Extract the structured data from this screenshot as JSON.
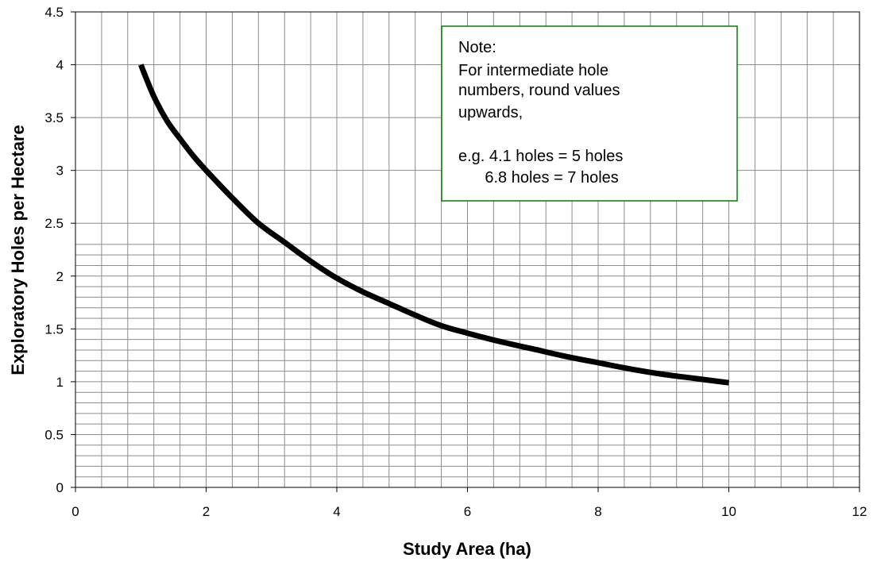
{
  "chart_data": {
    "type": "line",
    "xlabel": "Study Area (ha)",
    "ylabel": "Exploratory Holes per Hectare",
    "xlim": [
      0,
      12
    ],
    "ylim": [
      0,
      4.5
    ],
    "x_ticks": [
      "0",
      "2",
      "4",
      "6",
      "8",
      "10",
      "12"
    ],
    "y_ticks": [
      "0",
      "0.5",
      "1",
      "1.5",
      "2",
      "2.5",
      "3",
      "3.5",
      "4",
      "4.5"
    ],
    "grid": true,
    "x": [
      1,
      1.2,
      1.4,
      1.6,
      1.8,
      2,
      2.4,
      2.8,
      3.2,
      3.6,
      4,
      4.4,
      4.8,
      5.2,
      5.6,
      6,
      6.5,
      7,
      7.5,
      8,
      8.5,
      9,
      9.5,
      10
    ],
    "series": [
      {
        "color": "#000000",
        "values": [
          4.0,
          3.7,
          3.47,
          3.3,
          3.14,
          3.0,
          2.74,
          2.5,
          2.32,
          2.14,
          1.98,
          1.85,
          1.74,
          1.63,
          1.53,
          1.46,
          1.38,
          1.31,
          1.24,
          1.18,
          1.12,
          1.07,
          1.03,
          0.99
        ]
      }
    ],
    "annotation": {
      "border_color": "#008000",
      "lines": [
        "Note:",
        "For intermediate hole",
        "numbers, round values",
        "upwards,",
        "",
        "e.g. 4.1 holes = 5 holes",
        "      6.8 holes = 7 holes"
      ]
    }
  }
}
